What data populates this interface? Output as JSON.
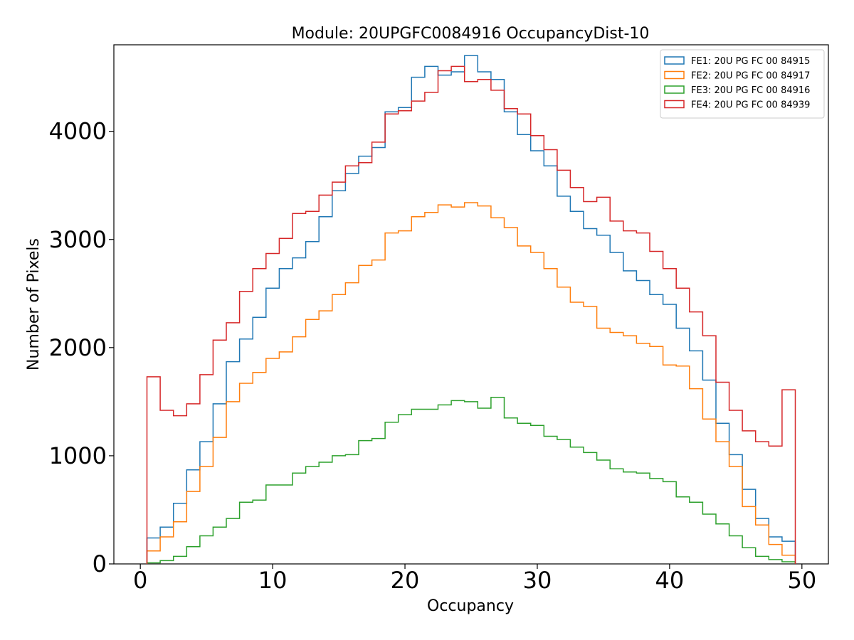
{
  "chart_data": {
    "type": "histogram-step",
    "title": "Module: 20UPGFC0084916 OccupancyDist-10",
    "xlabel": "Occupancy",
    "ylabel": "Number of Pixels",
    "xlim": [
      -2,
      52
    ],
    "ylim": [
      0,
      4800
    ],
    "xticks": [
      0,
      10,
      20,
      30,
      40,
      50
    ],
    "yticks": [
      0,
      1000,
      2000,
      3000,
      4000
    ],
    "bin_edges": [
      0.5,
      1.5,
      2.5,
      3.5,
      4.5,
      5.5,
      6.5,
      7.5,
      8.5,
      9.5,
      10.5,
      11.5,
      12.5,
      13.5,
      14.5,
      15.5,
      16.5,
      17.5,
      18.5,
      19.5,
      20.5,
      21.5,
      22.5,
      23.5,
      24.5,
      25.5,
      26.5,
      27.5,
      28.5,
      29.5,
      30.5,
      31.5,
      32.5,
      33.5,
      34.5,
      35.5,
      36.5,
      37.5,
      38.5,
      39.5,
      40.5,
      41.5,
      42.5,
      43.5,
      44.5,
      45.5,
      46.5,
      47.5,
      48.5,
      49.5
    ],
    "legend_position": "top-right",
    "series": [
      {
        "name": "FE1: 20U PG FC 00 84915",
        "color": "#1f77b4",
        "values": [
          240,
          340,
          560,
          870,
          1130,
          1480,
          1870,
          2080,
          2280,
          2550,
          2730,
          2830,
          2980,
          3210,
          3450,
          3610,
          3770,
          3850,
          4180,
          4220,
          4500,
          4600,
          4520,
          4550,
          4700,
          4550,
          4480,
          4180,
          3970,
          3820,
          3680,
          3400,
          3260,
          3100,
          3040,
          2880,
          2710,
          2620,
          2490,
          2400,
          2180,
          1970,
          1700,
          1300,
          1010,
          690,
          420,
          250,
          210
        ]
      },
      {
        "name": "FE2: 20U PG FC 00 84917",
        "color": "#ff7f0e",
        "values": [
          120,
          250,
          390,
          670,
          900,
          1170,
          1500,
          1670,
          1770,
          1900,
          1960,
          2100,
          2260,
          2340,
          2490,
          2600,
          2760,
          2810,
          3060,
          3080,
          3210,
          3250,
          3320,
          3300,
          3340,
          3310,
          3200,
          3110,
          2940,
          2880,
          2730,
          2560,
          2420,
          2380,
          2180,
          2140,
          2110,
          2040,
          2010,
          1840,
          1830,
          1620,
          1340,
          1130,
          900,
          530,
          360,
          180,
          80
        ]
      },
      {
        "name": "FE3: 20U PG FC 00 84916",
        "color": "#2ca02c",
        "values": [
          10,
          30,
          70,
          160,
          260,
          340,
          420,
          570,
          590,
          730,
          730,
          840,
          900,
          940,
          1000,
          1010,
          1140,
          1160,
          1310,
          1380,
          1430,
          1430,
          1470,
          1510,
          1500,
          1440,
          1540,
          1350,
          1300,
          1280,
          1180,
          1150,
          1080,
          1030,
          960,
          880,
          850,
          840,
          790,
          760,
          620,
          570,
          460,
          370,
          260,
          150,
          70,
          40,
          20
        ]
      },
      {
        "name": "FE4: 20U PG FC 00 84939",
        "color": "#d62728",
        "values": [
          1730,
          1420,
          1370,
          1480,
          1750,
          2070,
          2230,
          2520,
          2730,
          2870,
          3010,
          3240,
          3260,
          3410,
          3530,
          3680,
          3710,
          3900,
          4160,
          4190,
          4280,
          4360,
          4560,
          4600,
          4460,
          4480,
          4380,
          4210,
          4160,
          3960,
          3830,
          3640,
          3480,
          3350,
          3390,
          3170,
          3080,
          3060,
          2890,
          2730,
          2550,
          2330,
          2110,
          1680,
          1420,
          1230,
          1130,
          1090,
          1610
        ]
      }
    ]
  }
}
